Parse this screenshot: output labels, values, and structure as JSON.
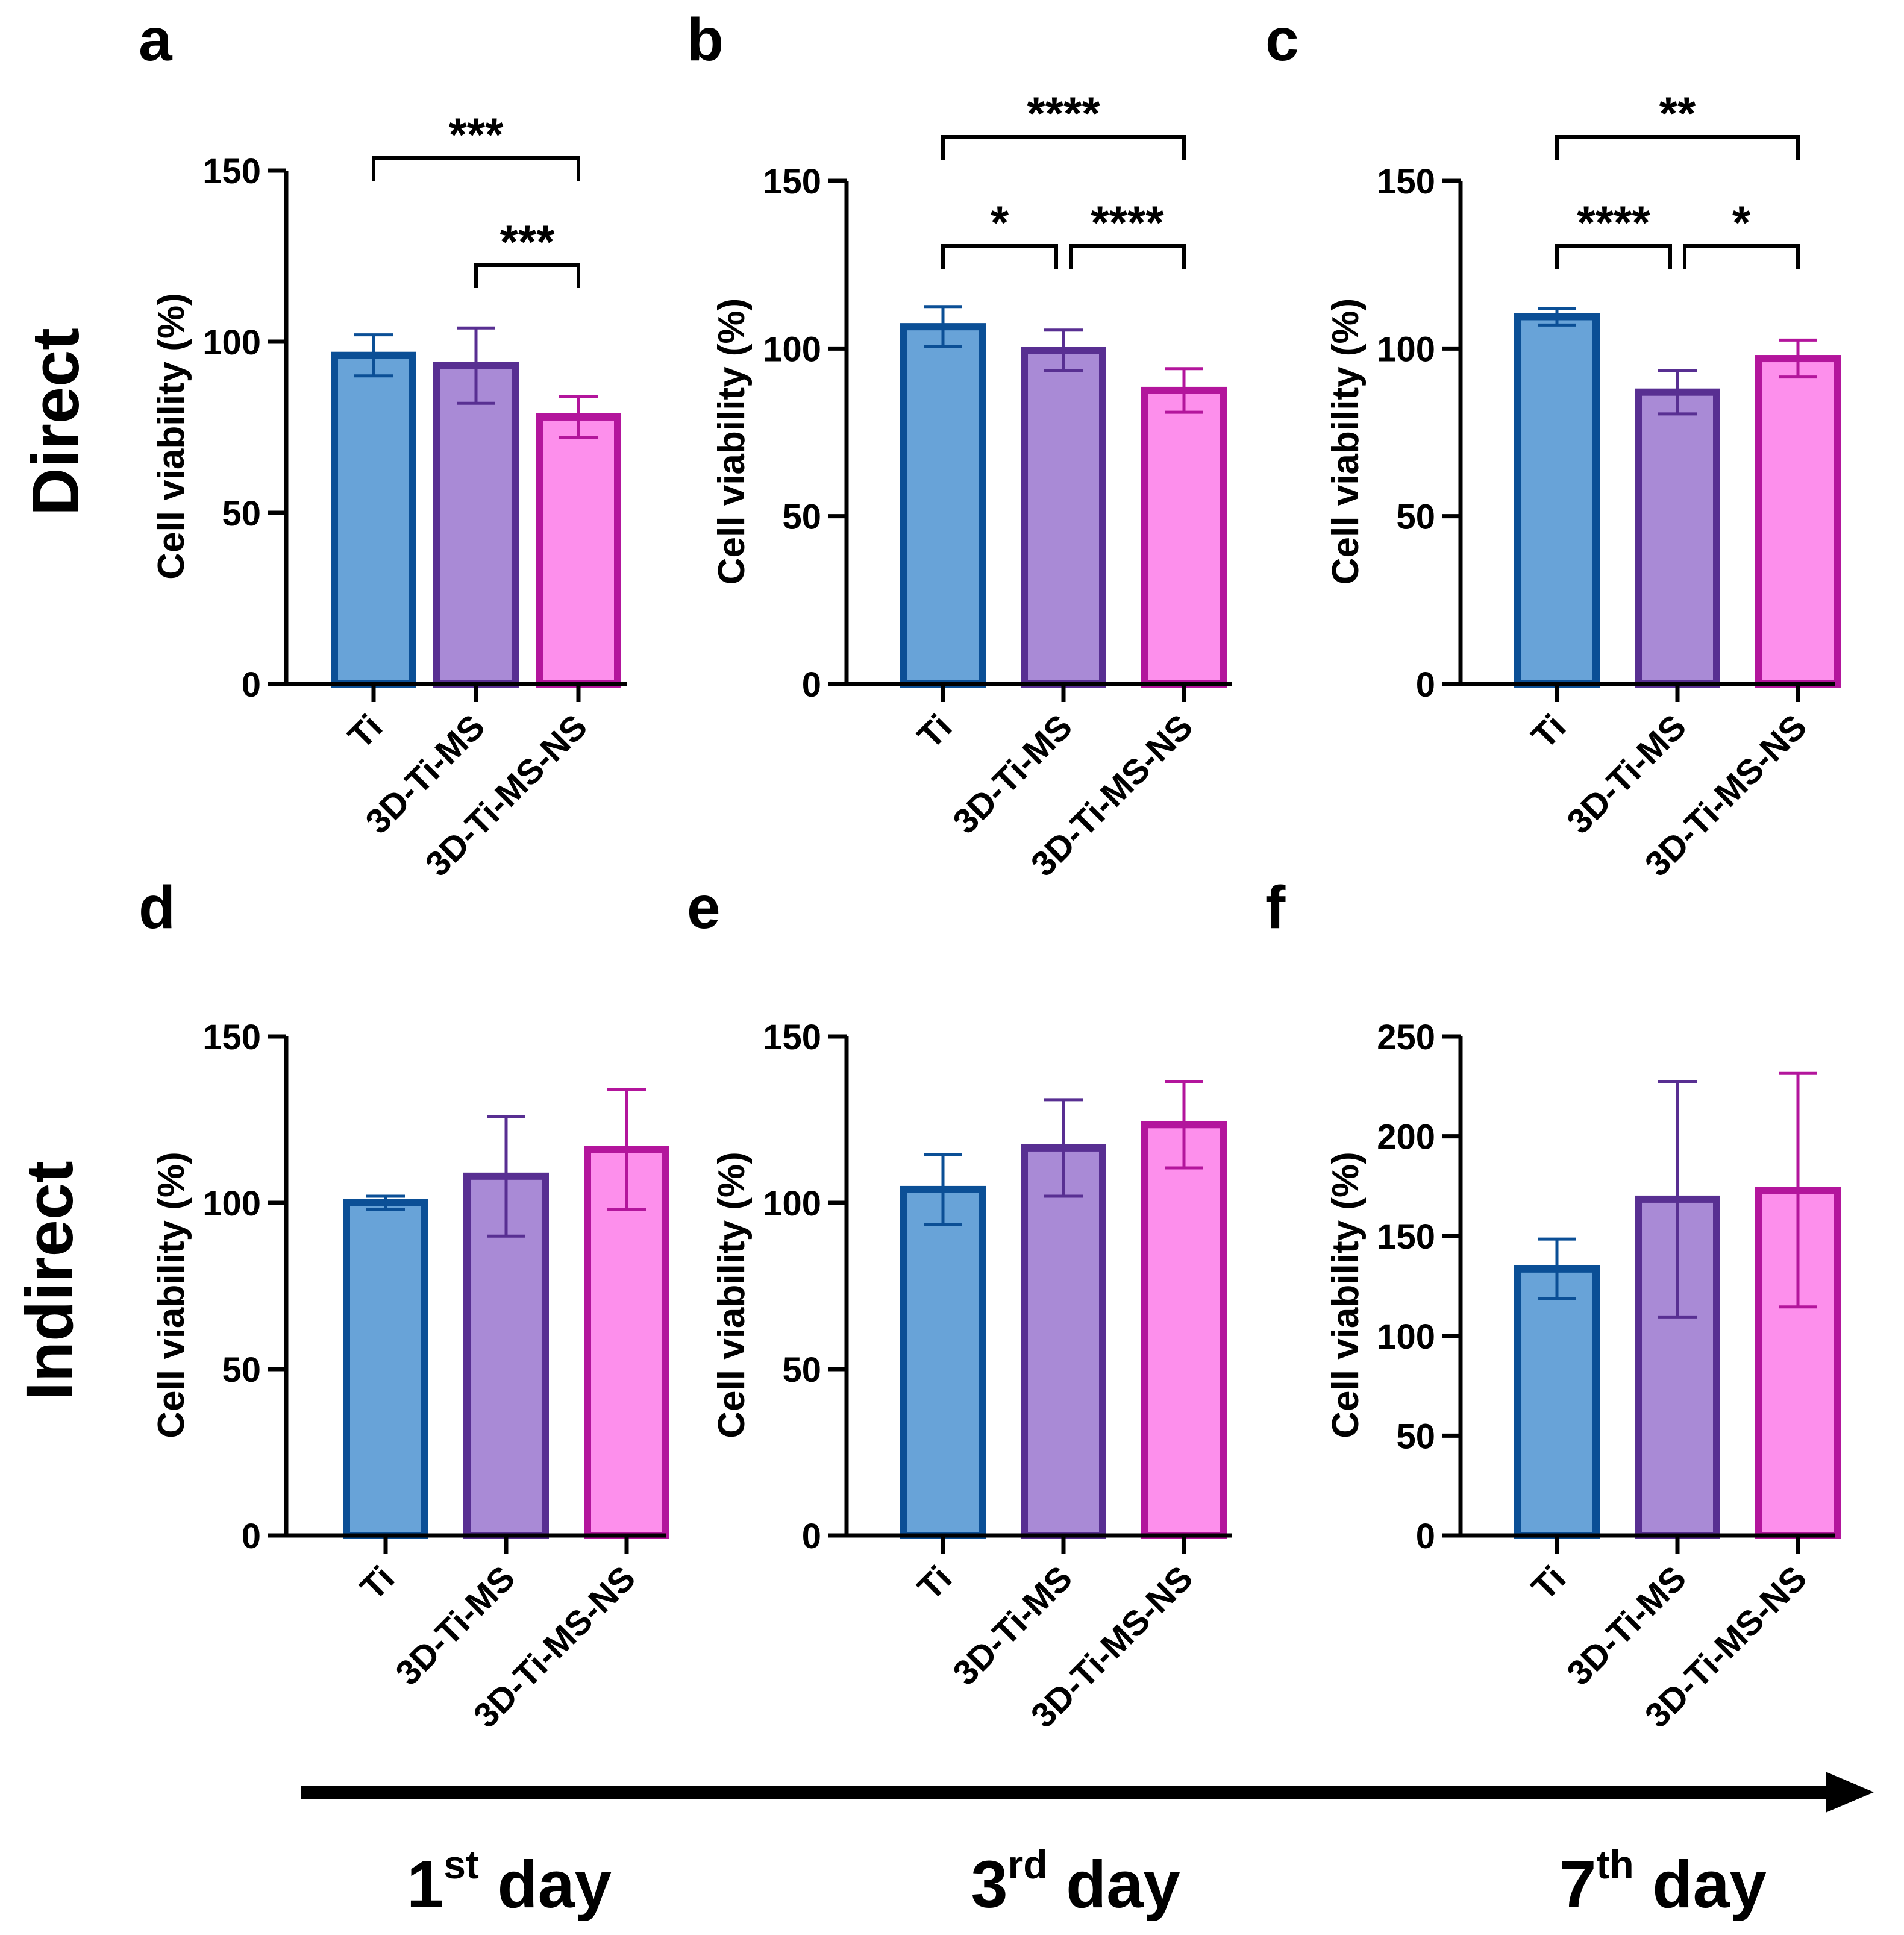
{
  "row_labels": [
    "Direct",
    "Indirect"
  ],
  "timeline": [
    {
      "num": "1",
      "sup": "st",
      "word": "day"
    },
    {
      "num": "3",
      "sup": "rd",
      "word": "day"
    },
    {
      "num": "7",
      "sup": "th",
      "word": "day"
    }
  ],
  "colors": {
    "Ti": {
      "fill": "#68a3d8",
      "stroke": "#0b4f96"
    },
    "3D-Ti-MS": {
      "fill": "#a98ad6",
      "stroke": "#582f92"
    },
    "3D-Ti-MS-NS": {
      "fill": "#fd8fec",
      "stroke": "#b3159c"
    }
  },
  "chart_data": [
    {
      "panel": "a",
      "type": "bar",
      "ylabel": "Cell viability (%)",
      "ylim": [
        0,
        150
      ],
      "yticks": [
        0,
        50,
        100,
        150
      ],
      "categories": [
        "Ti",
        "3D-Ti-MS",
        "3D-Ti-MS-NS"
      ],
      "values": [
        96,
        93,
        78
      ],
      "errors": [
        6,
        11,
        6
      ],
      "significance": [
        {
          "from": 0,
          "to": 2,
          "label": "***"
        },
        {
          "from": 1,
          "to": 2,
          "label": "***"
        }
      ]
    },
    {
      "panel": "b",
      "type": "bar",
      "ylabel": "Cell viability (%)",
      "ylim": [
        0,
        150
      ],
      "yticks": [
        0,
        50,
        100,
        150
      ],
      "categories": [
        "Ti",
        "3D-Ti-MS",
        "3D-Ti-MS-NS"
      ],
      "values": [
        106.5,
        99.5,
        87.5
      ],
      "errors": [
        6,
        6,
        6.5
      ],
      "significance": [
        {
          "from": 0,
          "to": 2,
          "label": "****"
        },
        {
          "from": 0,
          "to": 1,
          "label": "*"
        },
        {
          "from": 1,
          "to": 2,
          "label": "****"
        }
      ]
    },
    {
      "panel": "c",
      "type": "bar",
      "ylabel": "Cell viability (%)",
      "ylim": [
        0,
        150
      ],
      "yticks": [
        0,
        50,
        100,
        150
      ],
      "categories": [
        "Ti",
        "3D-Ti-MS",
        "3D-Ti-MS-NS"
      ],
      "values": [
        109.5,
        87,
        97
      ],
      "errors": [
        2.5,
        6.5,
        5.5
      ],
      "significance": [
        {
          "from": 0,
          "to": 2,
          "label": "**"
        },
        {
          "from": 0,
          "to": 1,
          "label": "****"
        },
        {
          "from": 1,
          "to": 2,
          "label": "*"
        }
      ]
    },
    {
      "panel": "d",
      "type": "bar",
      "ylabel": "Cell viability (%)",
      "ylim": [
        0,
        150
      ],
      "yticks": [
        0,
        50,
        100,
        150
      ],
      "categories": [
        "Ti",
        "3D-Ti-MS",
        "3D-Ti-MS-NS"
      ],
      "values": [
        100,
        108,
        116
      ],
      "errors": [
        2,
        18,
        18
      ],
      "significance": []
    },
    {
      "panel": "e",
      "type": "bar",
      "ylabel": "Cell viability (%)",
      "ylim": [
        0,
        150
      ],
      "yticks": [
        0,
        50,
        100,
        150
      ],
      "categories": [
        "Ti",
        "3D-Ti-MS",
        "3D-Ti-MS-NS"
      ],
      "values": [
        104,
        116.5,
        123.5
      ],
      "errors": [
        10.5,
        14.5,
        13
      ],
      "significance": []
    },
    {
      "panel": "f",
      "type": "bar",
      "ylabel": "Cell viability (%)",
      "ylim": [
        0,
        250
      ],
      "yticks": [
        0,
        50,
        100,
        150,
        200,
        250
      ],
      "categories": [
        "Ti",
        "3D-Ti-MS",
        "3D-Ti-MS-NS"
      ],
      "values": [
        133.5,
        168.5,
        173
      ],
      "errors": [
        15,
        59,
        58.5
      ],
      "significance": []
    }
  ]
}
